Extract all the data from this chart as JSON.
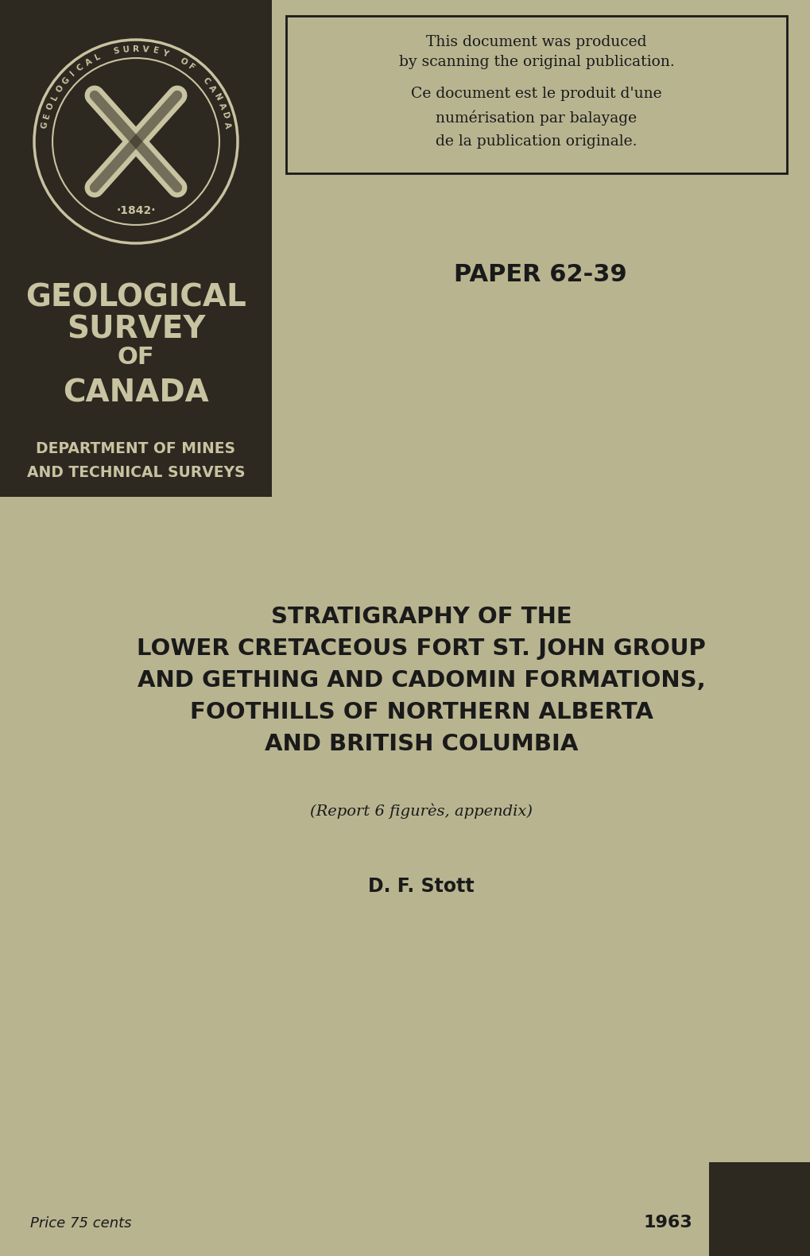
{
  "bg_color_main": "#b8b490",
  "left_panel_color": "#2d2820",
  "paper_number": "PAPER 62-39",
  "box_text_line1": "This document was produced",
  "box_text_line2": "by scanning the original publication.",
  "box_text_line3": "Ce document est le produit d'une",
  "box_text_line4": "numérisation par balayage",
  "box_text_line5": "de la publication originale.",
  "gsc_line1": "GEOLOGICAL",
  "gsc_line2": "SURVEY",
  "gsc_line3": "OF",
  "gsc_line4": "CANADA",
  "dept_line1": "DEPARTMENT OF MINES",
  "dept_line2": "AND TECHNICAL SURVEYS",
  "title_line1": "STRATIGRAPHY OF THE",
  "title_line2": "LOWER CRETACEOUS FORT ST. JOHN GROUP",
  "title_line3": "AND GETHING AND CADOMIN FORMATIONS,",
  "title_line4": "FOOTHILLS OF NORTHERN ALBERTA",
  "title_line5": "AND BRITISH COLUMBIA",
  "subtitle": "(Report 6 figurès, appendix)",
  "author": "D. F. Stott",
  "price": "Price 75 cents",
  "year": "1963",
  "seal_text": "GEOLOGICAL SURVEY OF CANADA",
  "seal_year": "·1842·",
  "seal_color": "#c8c3a0",
  "text_dark": "#1a1a1a"
}
